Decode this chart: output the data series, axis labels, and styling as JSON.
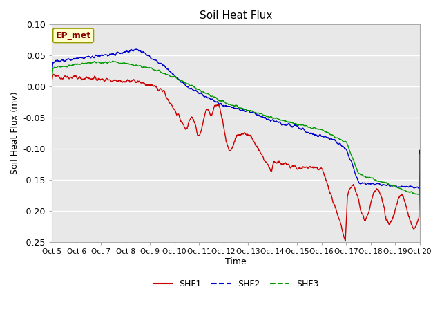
{
  "title": "Soil Heat Flux",
  "xlabel": "Time",
  "ylabel": "Soil Heat Flux (mv)",
  "ylim": [
    -0.25,
    0.1
  ],
  "yticks": [
    0.1,
    0.05,
    0.0,
    -0.05,
    -0.1,
    -0.15,
    -0.2,
    -0.25
  ],
  "xtick_labels": [
    "Oct 5",
    "Oct 6",
    "Oct 7",
    "Oct 8",
    "Oct 9",
    "Oct 10",
    "Oct 11",
    "Oct 12",
    "Oct 13",
    "Oct 14",
    "Oct 15",
    "Oct 16",
    "Oct 17",
    "Oct 18",
    "Oct 19",
    "Oct 20"
  ],
  "shf1_color": "#cc0000",
  "shf2_color": "#0000cc",
  "shf3_color": "#009900",
  "plot_bg_color": "#e8e8e8",
  "fig_bg_color": "#ffffff",
  "grid_color": "#ffffff",
  "annotation_text": "EP_met",
  "annotation_bg": "#ffffcc",
  "annotation_border": "#999900",
  "legend_entries": [
    "SHF1",
    "SHF2",
    "SHF3"
  ]
}
